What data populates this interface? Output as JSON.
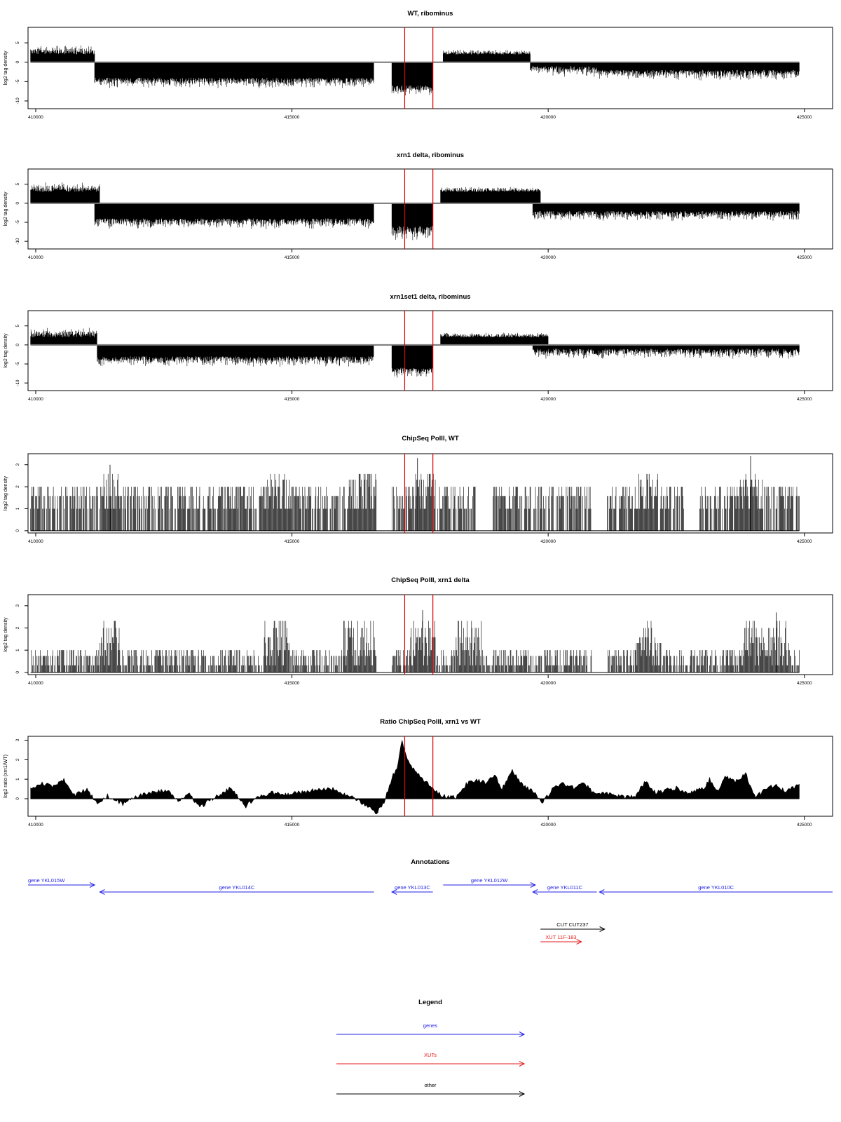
{
  "chart_data": [
    {
      "type": "bar",
      "id": "p1",
      "title": "WT, ribominus",
      "ylabel": "log2 tag density",
      "xlim": [
        409850,
        425550
      ],
      "ylim": [
        -12,
        9
      ],
      "yticks": [
        -10,
        -5,
        0,
        5
      ],
      "xticks": [
        410000,
        415000,
        420000,
        425000
      ],
      "markers": [
        417200,
        417750
      ],
      "segments": [
        {
          "x": [
            409900,
            411150
          ],
          "pos": [
            2,
            4
          ]
        },
        {
          "x": [
            411150,
            416600
          ],
          "neg": [
            4,
            6
          ]
        },
        {
          "x": [
            416950,
            417750
          ],
          "neg": [
            6,
            8
          ]
        },
        {
          "x": [
            417950,
            419650
          ],
          "pos": [
            2,
            3
          ]
        },
        {
          "x": [
            419650,
            420950
          ],
          "neg": [
            1,
            3
          ]
        },
        {
          "x": [
            420950,
            424900
          ],
          "neg": [
            2,
            4
          ]
        }
      ]
    },
    {
      "type": "bar",
      "id": "p2",
      "title": "xrn1 delta, ribominus",
      "ylabel": "log2 tag density",
      "xlim": [
        409850,
        425550
      ],
      "ylim": [
        -12,
        9
      ],
      "yticks": [
        -10,
        -5,
        0,
        5
      ],
      "xticks": [
        410000,
        415000,
        420000,
        425000
      ],
      "markers": [
        417200,
        417750
      ],
      "segments": [
        {
          "x": [
            409900,
            411250
          ],
          "pos": [
            3,
            5
          ]
        },
        {
          "x": [
            411150,
            416600
          ],
          "neg": [
            4,
            6
          ]
        },
        {
          "x": [
            416950,
            417750
          ],
          "neg": [
            6,
            9
          ]
        },
        {
          "x": [
            417900,
            419850
          ],
          "pos": [
            3,
            4
          ]
        },
        {
          "x": [
            419700,
            421100
          ],
          "neg": [
            2,
            4
          ]
        },
        {
          "x": [
            420950,
            424900
          ],
          "neg": [
            2,
            4
          ]
        }
      ]
    },
    {
      "type": "bar",
      "id": "p3",
      "title": "xrn1set1 delta, ribominus",
      "ylabel": "log2 tag density",
      "xlim": [
        409850,
        425550
      ],
      "ylim": [
        -12,
        9
      ],
      "yticks": [
        -10,
        -5,
        0,
        5
      ],
      "xticks": [
        410000,
        415000,
        420000,
        425000
      ],
      "markers": [
        417200,
        417750
      ],
      "segments": [
        {
          "x": [
            409900,
            411200
          ],
          "pos": [
            2,
            4
          ]
        },
        {
          "x": [
            411200,
            416600
          ],
          "neg": [
            3,
            5
          ]
        },
        {
          "x": [
            416950,
            417750
          ],
          "neg": [
            6,
            8
          ]
        },
        {
          "x": [
            417900,
            420000
          ],
          "pos": [
            2,
            3
          ]
        },
        {
          "x": [
            419700,
            421100
          ],
          "neg": [
            1,
            3
          ]
        },
        {
          "x": [
            420950,
            424900
          ],
          "neg": [
            1,
            3
          ]
        }
      ]
    },
    {
      "type": "bar",
      "id": "p4",
      "title": "ChipSeq PolII, WT",
      "ylabel": "log2 tag density",
      "xlim": [
        409850,
        425550
      ],
      "ylim": [
        -0.1,
        3.5
      ],
      "yticks": [
        0.0,
        1.0,
        2.0,
        3.0
      ],
      "xticks": [
        410000,
        415000,
        420000,
        425000
      ],
      "markers": [
        417200,
        417750
      ],
      "levels": [
        1.0,
        1.58,
        2.0,
        2.32,
        2.58
      ],
      "gaps": [
        [
          416650,
          416950
        ],
        [
          418600,
          418900
        ],
        [
          420850,
          421150
        ],
        [
          422650,
          422950
        ]
      ],
      "hot": [
        [
          411300,
          411650
        ],
        [
          414500,
          415000
        ],
        [
          416100,
          416650
        ],
        [
          417400,
          417800
        ],
        [
          421750,
          422150
        ],
        [
          423700,
          424200
        ]
      ],
      "peaks": [
        {
          "x": 417450,
          "y": 3.3
        },
        {
          "x": 423950,
          "y": 3.4
        },
        {
          "x": 411450,
          "y": 3.0
        }
      ]
    },
    {
      "type": "bar",
      "id": "p5",
      "title": "ChipSeq PolII, xrn1 delta",
      "ylabel": "log2 tag density",
      "xlim": [
        409850,
        425550
      ],
      "ylim": [
        -0.1,
        3.5
      ],
      "yticks": [
        0.0,
        1.0,
        2.0,
        3.0
      ],
      "xticks": [
        410000,
        415000,
        420000,
        425000
      ],
      "markers": [
        417200,
        417750
      ],
      "levels": [
        0.32,
        0.74,
        1.0,
        1.32,
        1.58,
        2.0,
        2.32
      ],
      "gaps": [
        [
          416650,
          416950
        ],
        [
          420850,
          421150
        ]
      ],
      "hot": [
        [
          411250,
          411650
        ],
        [
          414450,
          414950
        ],
        [
          416000,
          416650
        ],
        [
          417300,
          417800
        ],
        [
          418200,
          418700
        ],
        [
          421700,
          422200
        ],
        [
          423800,
          424700
        ]
      ],
      "peaks": [
        {
          "x": 417550,
          "y": 2.8
        },
        {
          "x": 424450,
          "y": 2.7
        }
      ]
    },
    {
      "type": "area",
      "id": "p6",
      "title": "Ratio ChipSeq PolII, xrn1 vs WT",
      "ylabel": "log2 ratio (xrn1/WT)",
      "xlim": [
        409850,
        425550
      ],
      "ylim": [
        -0.9,
        3.2
      ],
      "yticks": [
        0,
        1,
        2,
        3
      ],
      "xticks": [
        410000,
        415000,
        420000,
        425000
      ],
      "markers": [
        417200,
        417750
      ],
      "x": [
        409900,
        410100,
        410300,
        410550,
        410750,
        411000,
        411200,
        411400,
        411700,
        412000,
        412300,
        412550,
        412800,
        413000,
        413200,
        413500,
        413800,
        414100,
        414300,
        414600,
        414900,
        415200,
        415500,
        415750,
        416000,
        416300,
        416500,
        416650,
        416800,
        416950,
        417050,
        417150,
        417300,
        417450,
        417600,
        417750,
        417900,
        418050,
        418200,
        418400,
        418600,
        418800,
        418950,
        419100,
        419300,
        419500,
        419700,
        419900,
        420100,
        420300,
        420500,
        420700,
        420900,
        421100,
        421300,
        421500,
        421700,
        421900,
        422100,
        422300,
        422500,
        422700,
        422900,
        423050,
        423150,
        423300,
        423450,
        423650,
        423850,
        424050,
        424250,
        424450,
        424650,
        424900
      ],
      "y": [
        0.55,
        0.8,
        0.65,
        0.95,
        0.2,
        0.5,
        -0.25,
        0.15,
        -0.3,
        0.15,
        0.3,
        0.45,
        -0.1,
        0.2,
        -0.45,
        0.1,
        0.55,
        -0.4,
        0.1,
        0.3,
        0.2,
        0.35,
        0.45,
        0.55,
        0.3,
        -0.1,
        -0.45,
        -0.7,
        -0.2,
        1.1,
        1.5,
        3.0,
        1.7,
        1.3,
        0.9,
        0.5,
        0.2,
        0.1,
        0.1,
        0.75,
        1.0,
        0.8,
        1.2,
        0.55,
        1.5,
        0.7,
        0.4,
        -0.2,
        0.6,
        0.75,
        0.55,
        0.8,
        0.25,
        0.3,
        0.2,
        0.05,
        0.15,
        0.9,
        0.3,
        0.45,
        0.55,
        0.3,
        0.45,
        0.55,
        1.0,
        0.4,
        1.15,
        0.85,
        1.3,
        0.05,
        0.55,
        0.65,
        0.35,
        0.75
      ]
    },
    {
      "type": "annotation",
      "id": "ann",
      "title": "Annotations",
      "xlim": [
        409850,
        425550
      ],
      "features": [
        {
          "label": "gene YKL015W",
          "kind": "gene",
          "start": 409850,
          "end": 411150,
          "dir": "+",
          "row": 0
        },
        {
          "label": "gene YKL014C",
          "kind": "gene",
          "start": 411250,
          "end": 416600,
          "dir": "-",
          "row": 1
        },
        {
          "label": "gene YKL013C",
          "kind": "gene",
          "start": 416950,
          "end": 417750,
          "dir": "-",
          "row": 1
        },
        {
          "label": "gene YKL012W",
          "kind": "gene",
          "start": 417950,
          "end": 419750,
          "dir": "+",
          "row": 0
        },
        {
          "label": "gene YKL011C",
          "kind": "gene",
          "start": 419700,
          "end": 420950,
          "dir": "-",
          "row": 1
        },
        {
          "label": "gene YKL010C",
          "kind": "gene",
          "start": 421000,
          "end": 425550,
          "dir": "-",
          "row": 1
        },
        {
          "label": "CUT CUT237",
          "kind": "other",
          "start": 419850,
          "end": 421100,
          "dir": "+",
          "row": 2
        },
        {
          "label": "XUT 11F-183",
          "kind": "xut",
          "start": 419850,
          "end": 420650,
          "dir": "+",
          "row": 3
        }
      ]
    },
    {
      "type": "legend",
      "id": "legend",
      "title": "Legend",
      "entries": [
        {
          "label": "genes",
          "kind": "gene"
        },
        {
          "label": "XUTs",
          "kind": "xut"
        },
        {
          "label": "other",
          "kind": "other"
        }
      ]
    }
  ],
  "colors": {
    "bars": "#000000",
    "baseline": "#777777",
    "marker": "#e00000",
    "gene": "#2323e6",
    "xut": "#e61c1c",
    "other": "#000000",
    "frame": "#000000"
  }
}
